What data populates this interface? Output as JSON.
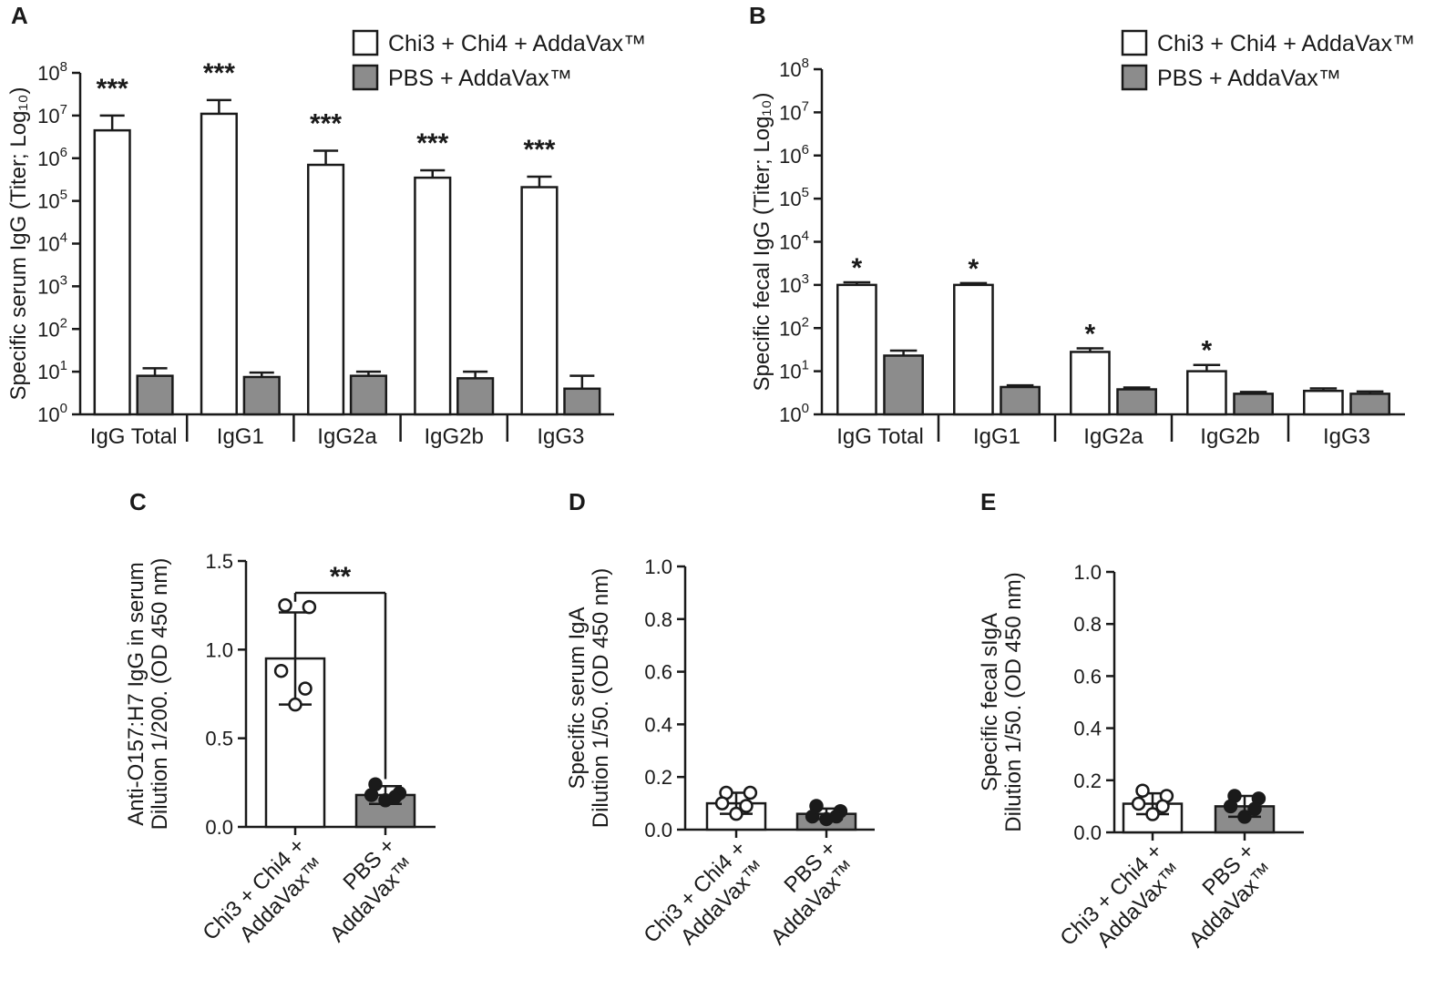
{
  "colors": {
    "vaccine": "#ffffff",
    "pbs": "#8c8c8c",
    "ink": "#1a1a1a"
  },
  "chart_data": [
    {
      "panel": "A",
      "type": "bar",
      "scale": "log10",
      "ylabel": "Specific serum IgG (Titer; Log₁₀)",
      "ylim": [
        1,
        100000000
      ],
      "yticks": [
        {
          "value": 1,
          "base": "10",
          "exp": "0"
        },
        {
          "value": 10,
          "base": "10",
          "exp": "1"
        },
        {
          "value": 100,
          "base": "10",
          "exp": "2"
        },
        {
          "value": 1000,
          "base": "10",
          "exp": "3"
        },
        {
          "value": 10000,
          "base": "10",
          "exp": "4"
        },
        {
          "value": 100000,
          "base": "10",
          "exp": "5"
        },
        {
          "value": 1000000,
          "base": "10",
          "exp": "6"
        },
        {
          "value": 10000000,
          "base": "10",
          "exp": "7"
        },
        {
          "value": 100000000,
          "base": "10",
          "exp": "8"
        }
      ],
      "categories": [
        "IgG Total",
        "IgG1",
        "IgG2a",
        "IgG2b",
        "IgG3"
      ],
      "legend": [
        "Chi3 + Chi4 + AddaVax™",
        "PBS + AddaVax™"
      ],
      "series": [
        {
          "name": "Chi3 + Chi4 + AddaVax™",
          "values": [
            4500000,
            11000000,
            700000,
            350000,
            210000
          ],
          "errors_upper": [
            10000000,
            23000000,
            1500000,
            520000,
            370000
          ]
        },
        {
          "name": "PBS + AddaVax™",
          "values": [
            8,
            7.5,
            8,
            7,
            4
          ],
          "errors_upper": [
            12,
            9.5,
            10,
            10,
            8
          ]
        }
      ],
      "annotations": [
        "***",
        "***",
        "***",
        "***",
        "***"
      ]
    },
    {
      "panel": "B",
      "type": "bar",
      "scale": "log10",
      "ylabel": "Specific fecal IgG (Titer; Log₁₀)",
      "ylim": [
        1,
        100000000
      ],
      "yticks": [
        {
          "value": 1,
          "base": "10",
          "exp": "0"
        },
        {
          "value": 10,
          "base": "10",
          "exp": "1"
        },
        {
          "value": 100,
          "base": "10",
          "exp": "2"
        },
        {
          "value": 1000,
          "base": "10",
          "exp": "3"
        },
        {
          "value": 10000,
          "base": "10",
          "exp": "4"
        },
        {
          "value": 100000,
          "base": "10",
          "exp": "5"
        },
        {
          "value": 1000000,
          "base": "10",
          "exp": "6"
        },
        {
          "value": 10000000,
          "base": "10",
          "exp": "7"
        },
        {
          "value": 100000000,
          "base": "10",
          "exp": "8"
        }
      ],
      "categories": [
        "IgG Total",
        "IgG1",
        "IgG2a",
        "IgG2b",
        "IgG3"
      ],
      "legend": [
        "Chi3 + Chi4 + AddaVax™",
        "PBS + AddaVax™"
      ],
      "series": [
        {
          "name": "Chi3 + Chi4 + AddaVax™",
          "values": [
            1000,
            1000,
            28,
            10,
            3.5
          ],
          "errors_upper": [
            1150,
            1100,
            34,
            14,
            4
          ]
        },
        {
          "name": "PBS + AddaVax™",
          "values": [
            23,
            4.3,
            3.8,
            3,
            3
          ],
          "errors_upper": [
            30,
            4.7,
            4.2,
            3.3,
            3.4
          ]
        }
      ],
      "annotations": [
        "*",
        "*",
        "*",
        "*",
        ""
      ]
    },
    {
      "panel": "C",
      "type": "bar",
      "scale": "linear",
      "ylabel_lines": [
        "Anti-O157:H7 IgG in serum",
        "Dilution 1/200. (OD 450 nm)"
      ],
      "ylim": [
        0,
        1.5
      ],
      "yticks": [
        {
          "value": 0,
          "label": "0.0"
        },
        {
          "value": 0.5,
          "label": "0.5"
        },
        {
          "value": 1.0,
          "label": "1.0"
        },
        {
          "value": 1.5,
          "label": "1.5"
        }
      ],
      "groups": [
        {
          "label_lines": [
            "Chi3 + Chi4 +",
            "AddaVax™"
          ],
          "mean": 0.95,
          "sd_low": 0.69,
          "sd_high": 1.21,
          "points": [
            1.25,
            1.24,
            0.88,
            0.78,
            0.69
          ],
          "fill": "vaccine"
        },
        {
          "label_lines": [
            "PBS +",
            "AddaVax™"
          ],
          "mean": 0.18,
          "sd_low": 0.13,
          "sd_high": 0.23,
          "points": [
            0.24,
            0.19,
            0.18,
            0.17,
            0.15
          ],
          "fill": "pbs"
        }
      ],
      "significance": "**"
    },
    {
      "panel": "D",
      "type": "bar",
      "scale": "linear",
      "ylabel_lines": [
        "Specific serum IgA",
        "Dilution 1/50. (OD 450 nm)"
      ],
      "ylim": [
        0,
        1.0
      ],
      "yticks": [
        {
          "value": 0,
          "label": "0.0"
        },
        {
          "value": 0.2,
          "label": "0.2"
        },
        {
          "value": 0.4,
          "label": "0.4"
        },
        {
          "value": 0.6,
          "label": "0.6"
        },
        {
          "value": 0.8,
          "label": "0.8"
        },
        {
          "value": 1.0,
          "label": "1.0"
        }
      ],
      "groups": [
        {
          "label_lines": [
            "Chi3 + Chi4 +",
            "AddaVax™"
          ],
          "mean": 0.1,
          "sd_low": 0.06,
          "sd_high": 0.14,
          "points": [
            0.14,
            0.14,
            0.1,
            0.09,
            0.06
          ],
          "fill": "vaccine"
        },
        {
          "label_lines": [
            "PBS +",
            "AddaVax™"
          ],
          "mean": 0.06,
          "sd_low": 0.04,
          "sd_high": 0.08,
          "points": [
            0.09,
            0.07,
            0.05,
            0.05,
            0.04
          ],
          "fill": "pbs"
        }
      ],
      "significance": ""
    },
    {
      "panel": "E",
      "type": "bar",
      "scale": "linear",
      "ylabel_lines": [
        "Specific fecal sIgA",
        "Dilution 1/50. (OD 450 nm)"
      ],
      "ylim": [
        0,
        1.0
      ],
      "yticks": [
        {
          "value": 0,
          "label": "0.0"
        },
        {
          "value": 0.2,
          "label": "0.2"
        },
        {
          "value": 0.4,
          "label": "0.4"
        },
        {
          "value": 0.6,
          "label": "0.6"
        },
        {
          "value": 0.8,
          "label": "0.8"
        },
        {
          "value": 1.0,
          "label": "1.0"
        }
      ],
      "groups": [
        {
          "label_lines": [
            "Chi3 + Chi4 +",
            "AddaVax™"
          ],
          "mean": 0.11,
          "sd_low": 0.07,
          "sd_high": 0.15,
          "points": [
            0.16,
            0.14,
            0.11,
            0.1,
            0.07
          ],
          "fill": "vaccine"
        },
        {
          "label_lines": [
            "PBS +",
            "AddaVax™"
          ],
          "mean": 0.1,
          "sd_low": 0.06,
          "sd_high": 0.14,
          "points": [
            0.14,
            0.13,
            0.1,
            0.09,
            0.06
          ],
          "fill": "pbs"
        }
      ],
      "significance": ""
    }
  ]
}
